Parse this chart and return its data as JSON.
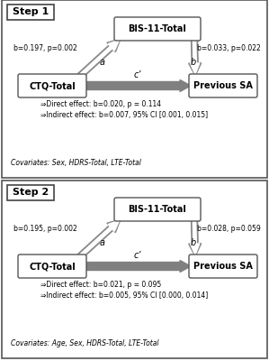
{
  "background_color": "#ffffff",
  "panels": [
    {
      "step_label": "Step 1",
      "mediator": "BIS-11-Total",
      "left_node": "CTQ-Total",
      "right_node": "Previous SA",
      "arrow_a_label": "b=0.197, p=0.002",
      "arrow_a_letter": "a",
      "arrow_b_label": "b=0.033, p=0.022",
      "arrow_b_letter": "b",
      "arrow_c_letter": "c’",
      "direct_effect": "⇒Direct effect: b=0.020, p = 0.114",
      "indirect_effect": "⇒Indirect effect: b=0.007, 95% CI [0.001, 0.015]",
      "covariates": "Covariates: Sex, HDRS-Total, LTE-Total"
    },
    {
      "step_label": "Step 2",
      "mediator": "BIS-11-Total",
      "left_node": "CTQ-Total",
      "right_node": "Previous SA",
      "arrow_a_label": "b=0.195, p=0.002",
      "arrow_a_letter": "a",
      "arrow_b_label": "b=0.028, p=0.059",
      "arrow_b_letter": "b",
      "arrow_c_letter": "c’",
      "direct_effect": "⇒Direct effect: b=0.021, p = 0.095",
      "indirect_effect": "⇒Indirect effect: b=0.005, 95% CI [0.000, 0.014]",
      "covariates": "Covariates: Age, Sex, HDRS-Total, LTE-Total"
    }
  ]
}
